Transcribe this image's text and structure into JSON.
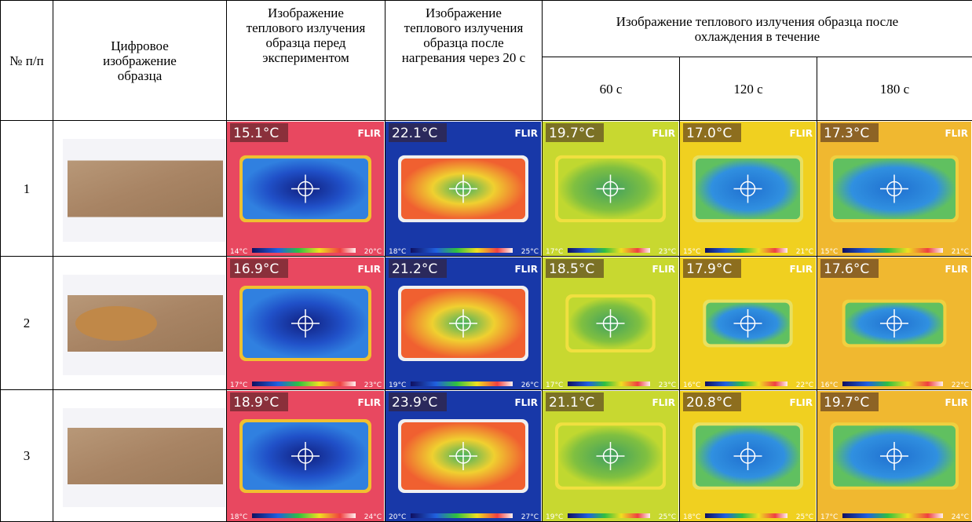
{
  "header": {
    "num": "№ п/п",
    "digital": "Цифровое изображение образца",
    "before": "Изображение теплового излучения образца перед экспериментом",
    "after": "Изображение теплового излучения образца после нагревания через 20 с",
    "cooling": "Изображение теплового излучения образца после охлаждения в течение",
    "times": [
      "60 с",
      "120 с",
      "180 с"
    ]
  },
  "brand": "FLIR",
  "rows": [
    {
      "num": "1",
      "images": [
        {
          "temp": "15.1°C",
          "min": "14°C",
          "max": "20°C"
        },
        {
          "temp": "22.1°C",
          "min": "18°C",
          "max": "25°C"
        },
        {
          "temp": "19.7°C",
          "min": "17°C",
          "max": "23°C"
        },
        {
          "temp": "17.0°C",
          "min": "15°C",
          "max": "21°C"
        },
        {
          "temp": "17.3°C",
          "min": "15°C",
          "max": "21°C"
        }
      ]
    },
    {
      "num": "2",
      "images": [
        {
          "temp": "16.9°C",
          "min": "17°C",
          "max": "23°C"
        },
        {
          "temp": "21.2°C",
          "min": "19°C",
          "max": "26°C"
        },
        {
          "temp": "18.5°C",
          "min": "17°C",
          "max": "23°C"
        },
        {
          "temp": "17.9°C",
          "min": "16°C",
          "max": "22°C"
        },
        {
          "temp": "17.6°C",
          "min": "16°C",
          "max": "22°C"
        }
      ]
    },
    {
      "num": "3",
      "images": [
        {
          "temp": "18.9°C",
          "min": "18°C",
          "max": "24°C"
        },
        {
          "temp": "23.9°C",
          "min": "20°C",
          "max": "27°C"
        },
        {
          "temp": "21.1°C",
          "min": "19°C",
          "max": "25°C"
        },
        {
          "temp": "20.8°C",
          "min": "18°C",
          "max": "25°C"
        },
        {
          "temp": "19.7°C",
          "min": "17°C",
          "max": "24°C"
        }
      ]
    }
  ]
}
